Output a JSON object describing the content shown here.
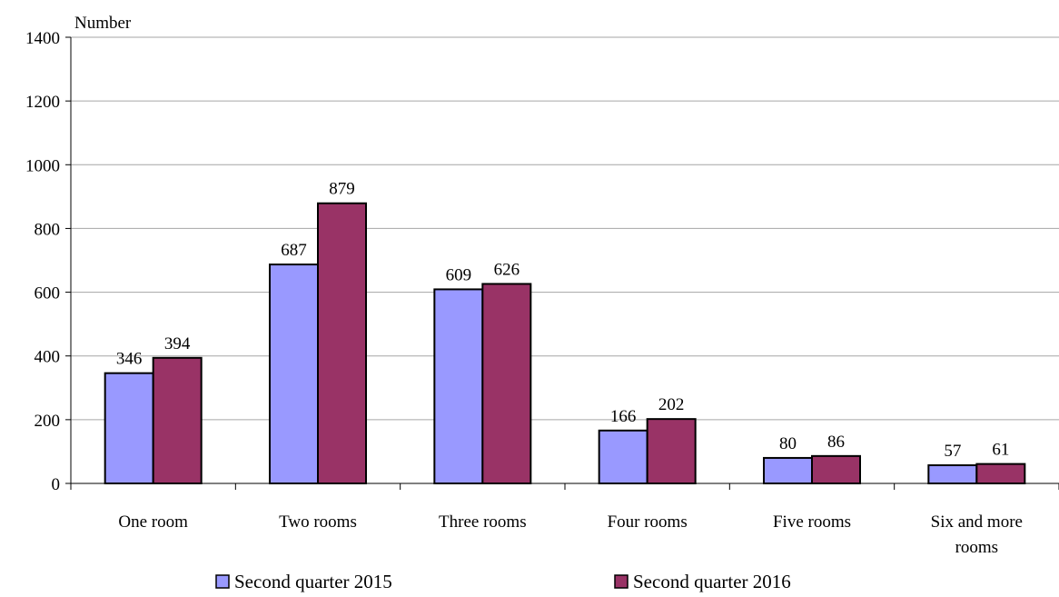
{
  "chart_data": {
    "type": "bar",
    "ylabel": "Number",
    "ylim": [
      0,
      1400
    ],
    "yticks": [
      0,
      200,
      400,
      600,
      800,
      1000,
      1200,
      1400
    ],
    "grid": true,
    "legend_position": "bottom",
    "categories": [
      [
        "One room"
      ],
      [
        "Two rooms"
      ],
      [
        "Three rooms"
      ],
      [
        "Four rooms"
      ],
      [
        "Five rooms"
      ],
      [
        "Six and more",
        "rooms"
      ]
    ],
    "series": [
      {
        "name": "Second quarter 2015",
        "color": "#9999ff",
        "values": [
          346,
          687,
          609,
          166,
          80,
          57
        ]
      },
      {
        "name": "Second quarter 2016",
        "color": "#993366",
        "values": [
          394,
          879,
          626,
          202,
          86,
          61
        ]
      }
    ]
  }
}
